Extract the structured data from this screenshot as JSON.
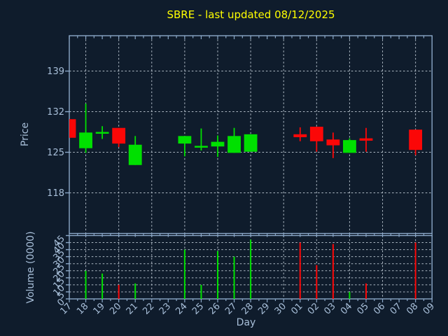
{
  "style": {
    "background": "#0F1C2C",
    "spine_color": "#8AA7C7",
    "tick_label_color": "#A8BFD9",
    "grid_color": "#AEB9C4",
    "title_color": "#FFFF00",
    "up_color": "#00E000",
    "down_color": "#FB0707"
  },
  "chart_data": {
    "type": "candlestick_with_volume",
    "title": "SBRE - last updated 08/12/2025",
    "xlabel": "Day",
    "x_categories": [
      "17",
      "18",
      "19",
      "20",
      "21",
      "22",
      "23",
      "24",
      "25",
      "26",
      "27",
      "28",
      "29",
      "30",
      "01",
      "02",
      "03",
      "04",
      "05",
      "06",
      "07",
      "08",
      "09"
    ],
    "grid": "dashed, vertical lines on alternate days",
    "legend": "none",
    "price_axis": {
      "label": "Price",
      "ticks": [
        139,
        132,
        125,
        118
      ],
      "ylim": [
        111.0,
        145.1
      ]
    },
    "volume_axis": {
      "label": "Volume (0000)",
      "ticks": [
        45,
        40,
        35,
        30,
        25,
        20,
        15,
        10,
        5,
        0
      ],
      "ylim": [
        0,
        45
      ]
    },
    "candles": [
      {
        "day": "17",
        "open": 130.7,
        "high": 130.7,
        "low": 127.5,
        "close": 127.5,
        "direction": "down",
        "volume": 0
      },
      {
        "day": "18",
        "open": 125.7,
        "high": 133.4,
        "low": 124.9,
        "close": 128.4,
        "direction": "up",
        "volume": 20
      },
      {
        "day": "19",
        "open": 128.4,
        "high": 129.5,
        "low": 127.3,
        "close": 128.5,
        "direction": "up",
        "volume": 18
      },
      {
        "day": "20",
        "open": 129.2,
        "high": 129.2,
        "low": 125.9,
        "close": 126.5,
        "direction": "down",
        "volume": 10
      },
      {
        "day": "21",
        "open": 122.8,
        "high": 127.8,
        "low": 122.8,
        "close": 126.3,
        "direction": "up",
        "volume": 11
      },
      {
        "day": "24",
        "open": 126.5,
        "high": 127.8,
        "low": 124.3,
        "close": 127.8,
        "direction": "up",
        "volume": 35
      },
      {
        "day": "25",
        "open": 126.0,
        "high": 129.1,
        "low": 125.3,
        "close": 126.1,
        "direction": "up",
        "volume": 10
      },
      {
        "day": "26",
        "open": 126.0,
        "high": 127.9,
        "low": 124.2,
        "close": 126.8,
        "direction": "up",
        "volume": 34
      },
      {
        "day": "27",
        "open": 124.9,
        "high": 129.2,
        "low": 124.9,
        "close": 127.8,
        "direction": "up",
        "volume": 30
      },
      {
        "day": "28",
        "open": 125.1,
        "high": 128.1,
        "low": 125.1,
        "close": 128.1,
        "direction": "up",
        "volume": 42
      },
      {
        "day": "01",
        "open": 128.1,
        "high": 129.3,
        "low": 126.9,
        "close": 127.6,
        "direction": "down",
        "volume": 40
      },
      {
        "day": "02",
        "open": 129.4,
        "high": 129.4,
        "low": 125.1,
        "close": 126.9,
        "direction": "down",
        "volume": 24
      },
      {
        "day": "03",
        "open": 127.2,
        "high": 128.4,
        "low": 124.0,
        "close": 126.2,
        "direction": "down",
        "volume": 39
      },
      {
        "day": "04",
        "open": 124.9,
        "high": 127.4,
        "low": 124.9,
        "close": 127.1,
        "direction": "up",
        "volume": 5
      },
      {
        "day": "05",
        "open": 127.4,
        "high": 129.2,
        "low": 125.1,
        "close": 127.0,
        "direction": "down",
        "volume": 11
      },
      {
        "day": "08",
        "open": 128.9,
        "high": 128.9,
        "low": 124.5,
        "close": 125.4,
        "direction": "down",
        "volume": 40
      }
    ]
  }
}
